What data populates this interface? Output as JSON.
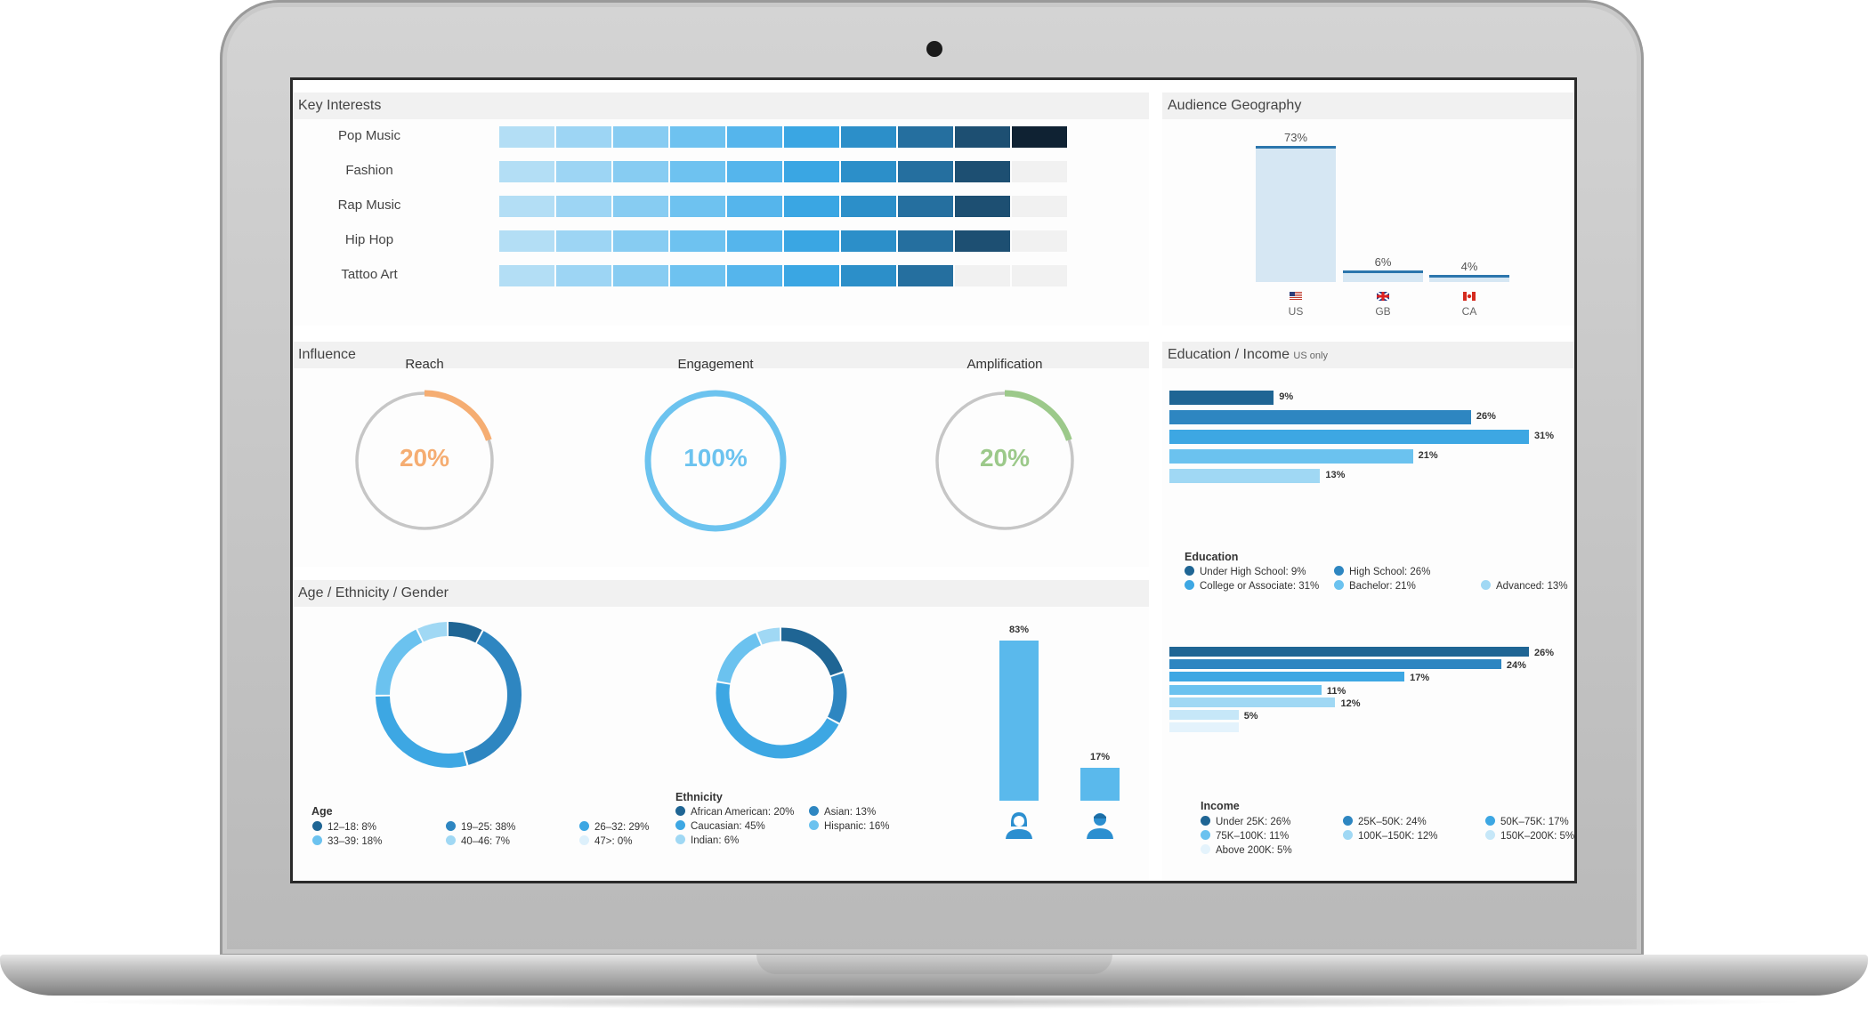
{
  "key_interests": {
    "title": "Key Interests",
    "palette": [
      "#b3def5",
      "#9dd5f4",
      "#87ccf2",
      "#6ec2f0",
      "#55b5ec",
      "#3aa6e3",
      "#2c8fc9",
      "#256f9f",
      "#1d4f72",
      "#0f2233"
    ],
    "empty_color": "#f1f1f1",
    "items": [
      {
        "label": "Pop Music",
        "level": 10
      },
      {
        "label": "Fashion",
        "level": 9
      },
      {
        "label": "Rap Music",
        "level": 9
      },
      {
        "label": "Hip Hop",
        "level": 9
      },
      {
        "label": "Tattoo Art",
        "level": 8
      }
    ]
  },
  "geography": {
    "title": "Audience Geography",
    "chart_data": {
      "type": "bar",
      "categories": [
        "US",
        "GB",
        "CA"
      ],
      "values": [
        73,
        6,
        4
      ],
      "value_labels": [
        "73%",
        "6%",
        "4%"
      ],
      "flags": [
        "us-flag-icon",
        "gb-flag-icon",
        "ca-flag-icon"
      ],
      "ylim": [
        0,
        73
      ]
    }
  },
  "influence": {
    "title": "Influence",
    "gauges": [
      {
        "label": "Reach",
        "value_text": "20%",
        "value": 20,
        "color": "#f5ad72"
      },
      {
        "label": "Engagement",
        "value_text": "100%",
        "value": 100,
        "color": "#6cc3ef"
      },
      {
        "label": "Amplification",
        "value_text": "20%",
        "value": 20,
        "color": "#9cc98a"
      }
    ],
    "track_color": "#c6c6c6"
  },
  "demographics": {
    "title": "Age / Ethnicity / Gender",
    "age": {
      "title": "Age",
      "chart_data": {
        "type": "pie",
        "series": [
          {
            "label": "12–18: 8%",
            "value": 8,
            "color": "#1f6594"
          },
          {
            "label": "19–25: 38%",
            "value": 38,
            "color": "#2e86c1"
          },
          {
            "label": "26–32: 29%",
            "value": 29,
            "color": "#3da7e3"
          },
          {
            "label": "33–39: 18%",
            "value": 18,
            "color": "#6bc2ef"
          },
          {
            "label": "40–46: 7%",
            "value": 7,
            "color": "#a0d8f4"
          },
          {
            "label": "47>: 0%",
            "value": 0,
            "color": "#ddf0fb"
          }
        ]
      }
    },
    "ethnicity": {
      "title": "Ethnicity",
      "chart_data": {
        "type": "pie",
        "series": [
          {
            "label": "African American: 20%",
            "value": 20,
            "color": "#1f6594"
          },
          {
            "label": "Asian: 13%",
            "value": 13,
            "color": "#2e86c1"
          },
          {
            "label": "Caucasian: 45%",
            "value": 45,
            "color": "#3da7e3"
          },
          {
            "label": "Hispanic: 16%",
            "value": 16,
            "color": "#6bc2ef"
          },
          {
            "label": "Indian: 6%",
            "value": 6,
            "color": "#a0d8f4"
          }
        ]
      }
    },
    "gender": {
      "chart_data": {
        "type": "bar",
        "categories": [
          "female",
          "male"
        ],
        "values": [
          83,
          17
        ],
        "value_labels": [
          "83%",
          "17%"
        ],
        "ylim": [
          0,
          83
        ]
      },
      "color": "#5ab9ec",
      "icons": [
        "female-user-icon",
        "male-user-icon"
      ]
    }
  },
  "education_income": {
    "title": "Education / Income",
    "subtitle": "US only",
    "education": {
      "title": "Education",
      "chart_data": {
        "type": "bar",
        "orientation": "horizontal",
        "xlim": [
          0,
          31
        ],
        "series": [
          {
            "label": "Under High School: 9%",
            "value": 9,
            "value_label": "9%",
            "color": "#1f6594"
          },
          {
            "label": "High School: 26%",
            "value": 26,
            "value_label": "26%",
            "color": "#2e86c1"
          },
          {
            "label": "College or Associate: 31%",
            "value": 31,
            "value_label": "31%",
            "color": "#3da7e3"
          },
          {
            "label": "Bachelor: 21%",
            "value": 21,
            "value_label": "21%",
            "color": "#6bc2ef"
          },
          {
            "label": "Advanced: 13%",
            "value": 13,
            "value_label": "13%",
            "color": "#a0d8f4"
          }
        ]
      }
    },
    "income": {
      "title": "Income",
      "chart_data": {
        "type": "bar",
        "orientation": "horizontal",
        "xlim": [
          0,
          26
        ],
        "series": [
          {
            "label": "Under 25K: 26%",
            "value": 26,
            "value_label": "26%",
            "color": "#1f6594"
          },
          {
            "label": "25K–50K: 24%",
            "value": 24,
            "value_label": "24%",
            "color": "#2e86c1"
          },
          {
            "label": "50K–75K: 17%",
            "value": 17,
            "value_label": "17%",
            "color": "#3da7e3"
          },
          {
            "label": "75K–100K: 11%",
            "value": 11,
            "value_label": "11%",
            "color": "#6bc2ef"
          },
          {
            "label": "100K–150K: 12%",
            "value": 12,
            "value_label": "12%",
            "color": "#a0d8f4"
          },
          {
            "label": "150K–200K: 5%",
            "value": 5,
            "value_label": "5%",
            "color": "#c6e7f8"
          },
          {
            "label": "Above 200K: 5%",
            "value": 5,
            "value_label": "",
            "color": "#e4f3fc"
          }
        ]
      }
    }
  }
}
